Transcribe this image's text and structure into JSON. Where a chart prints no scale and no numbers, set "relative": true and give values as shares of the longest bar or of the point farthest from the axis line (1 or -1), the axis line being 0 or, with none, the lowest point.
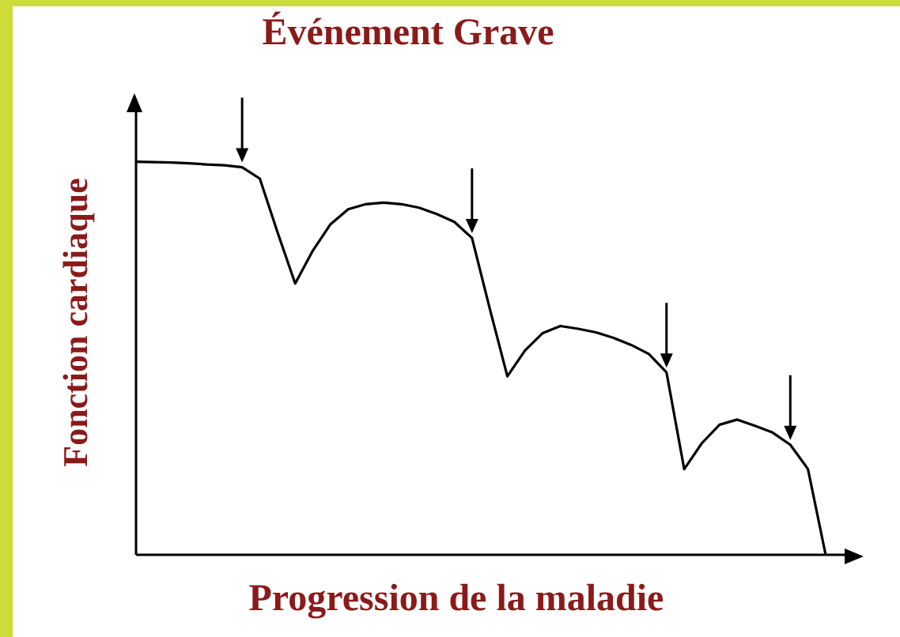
{
  "chart_data": {
    "type": "line",
    "title": "Événement Grave",
    "xlabel": "Progression de la maladie",
    "ylabel": "Fonction cardiaque",
    "relative": true,
    "marker": "none",
    "line_style": "solid",
    "categories": [
      null,
      null,
      null,
      null,
      null,
      null,
      null,
      null,
      null,
      null,
      null,
      null,
      null,
      null,
      null,
      null,
      null,
      null,
      null,
      null,
      null,
      null,
      null,
      null,
      null,
      null,
      null,
      null,
      null,
      null,
      null,
      null,
      null,
      null,
      null,
      null,
      null,
      null,
      null,
      null
    ],
    "series": [
      {
        "color": "#000000",
        "values": [
          1,
          0.999,
          0.998,
          0.996,
          0.993,
          0.991,
          0.986,
          0.957,
          0.821,
          0.69,
          0.774,
          0.841,
          0.879,
          0.892,
          0.896,
          0.892,
          0.883,
          0.867,
          0.847,
          0.806,
          0.627,
          0.454,
          0.52,
          0.564,
          0.582,
          0.575,
          0.566,
          0.552,
          0.534,
          0.511,
          0.464,
          0.218,
          0.284,
          0.331,
          0.344,
          0.328,
          0.311,
          0.28,
          0.218,
          0
        ]
      }
    ]
  }
}
